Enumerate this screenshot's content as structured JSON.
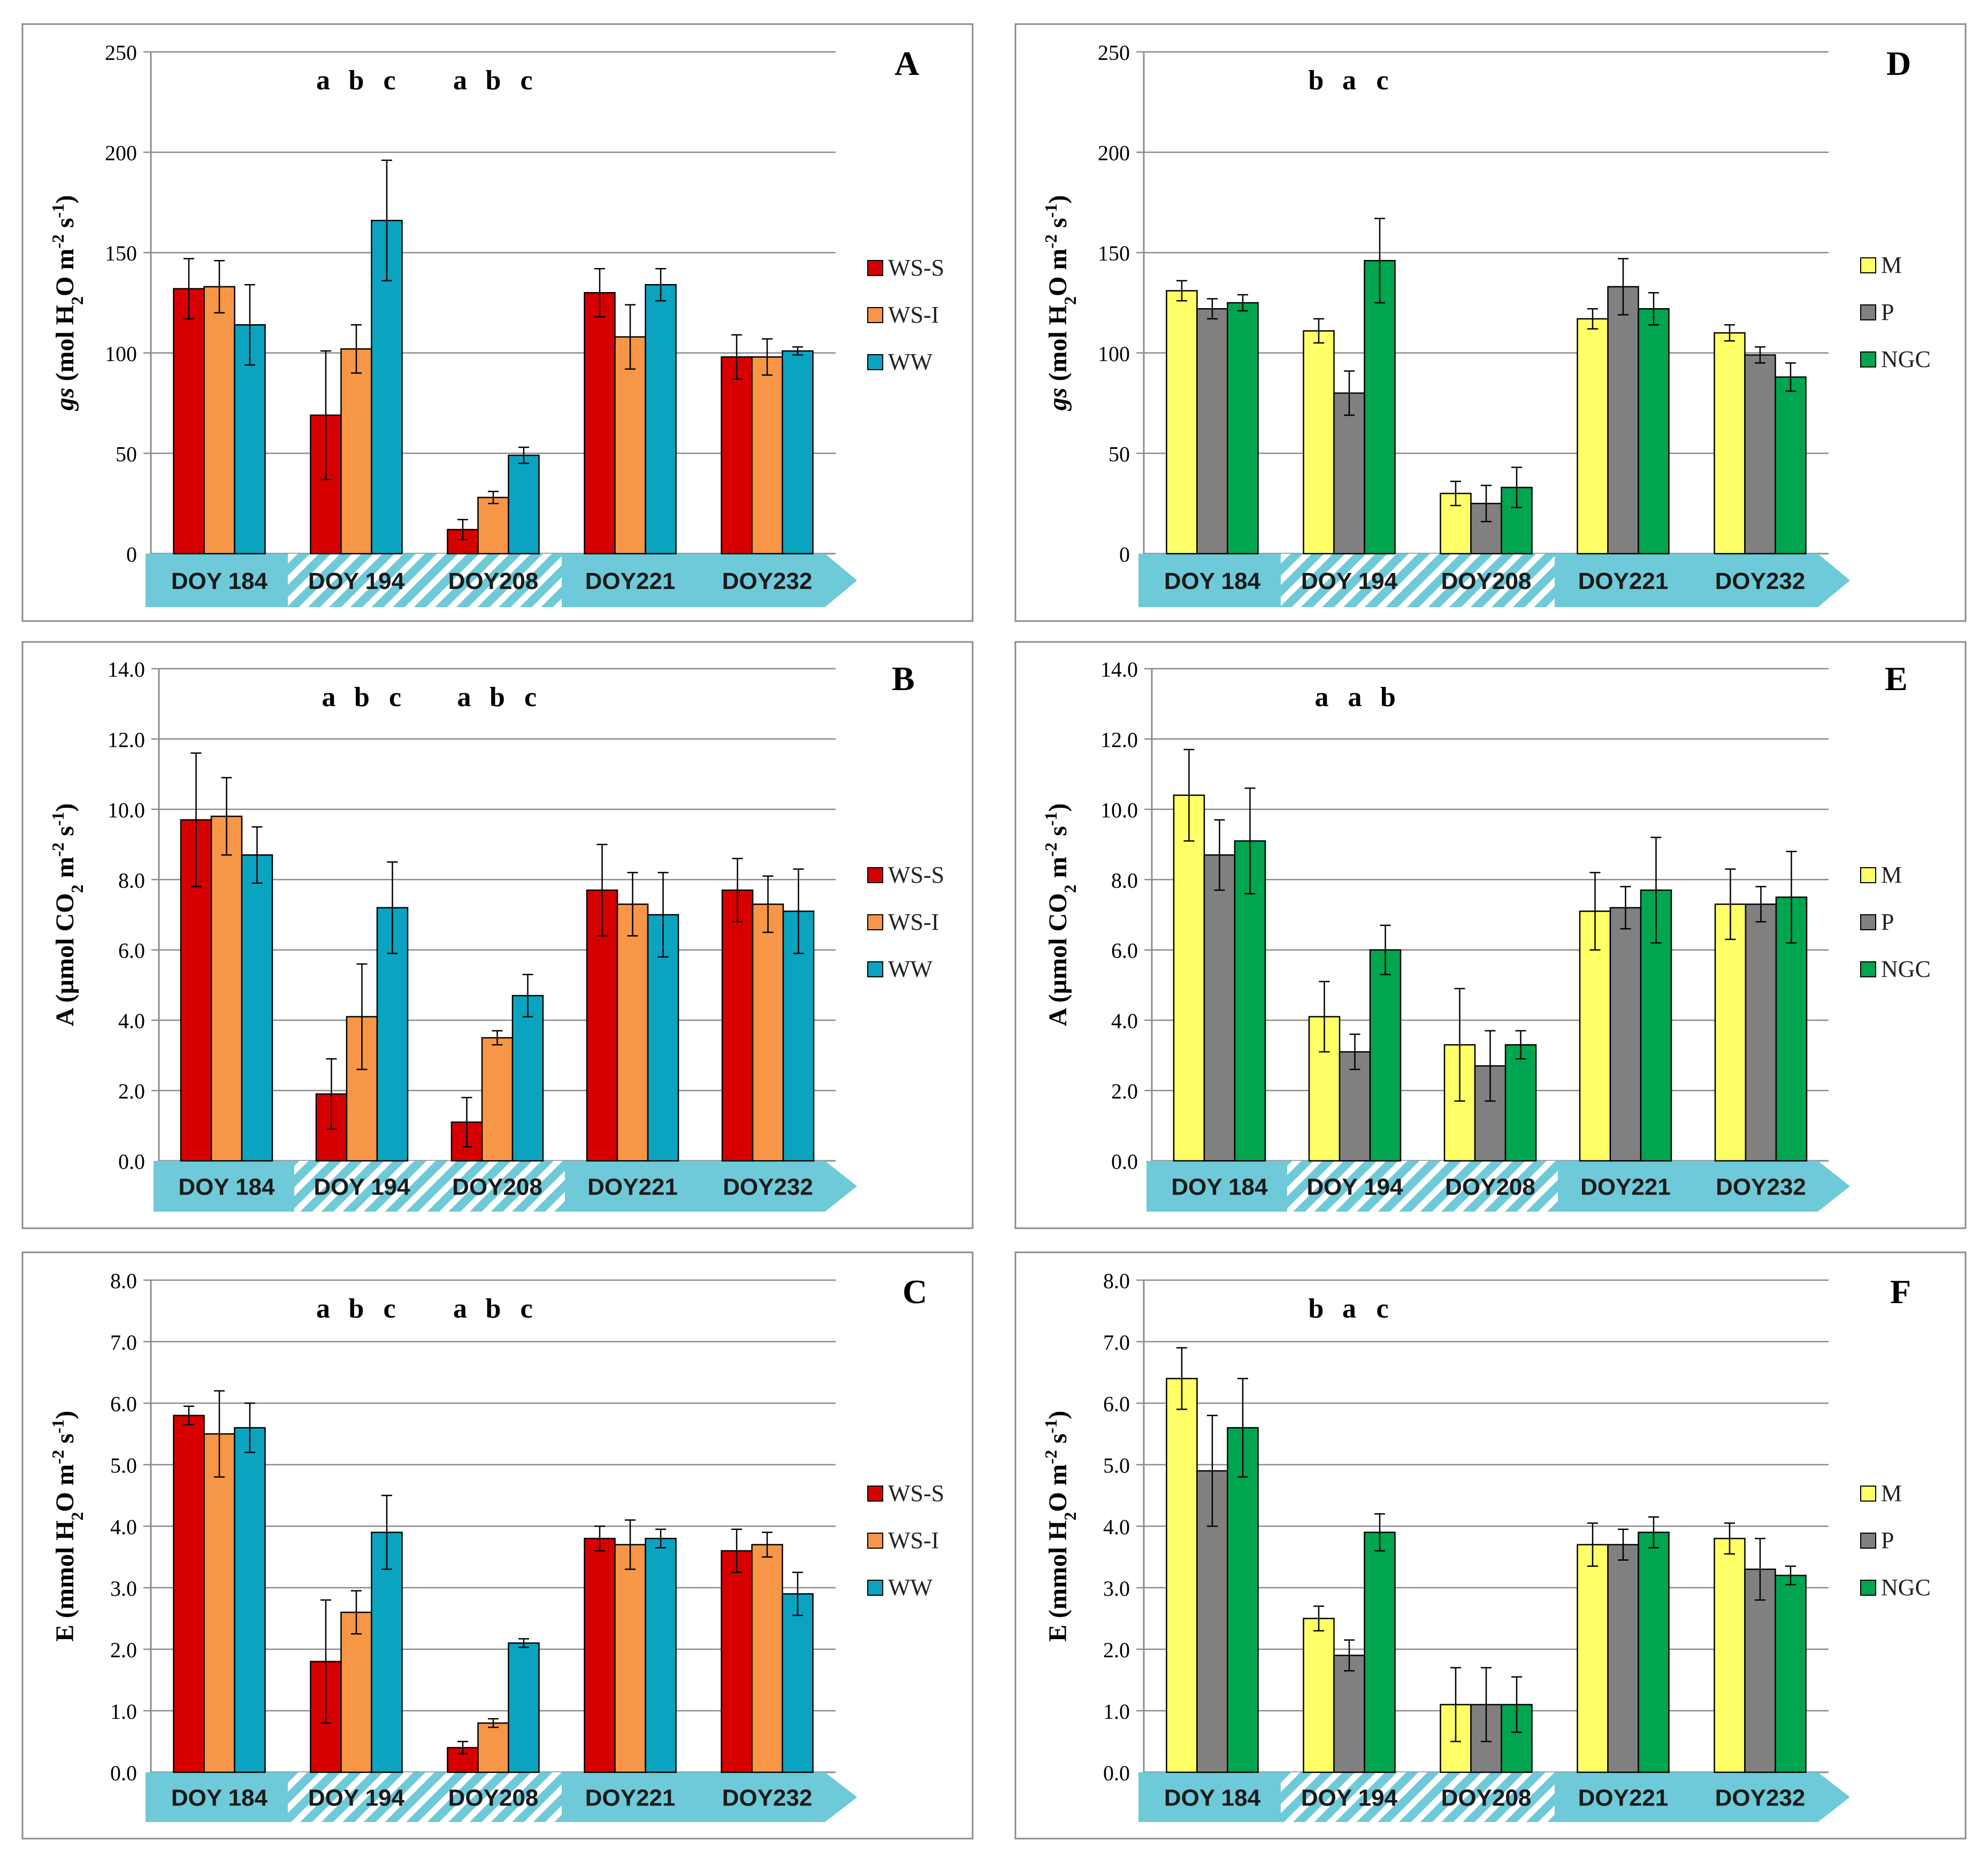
{
  "chart_data": [
    {
      "id": "A",
      "panel_letter": "A",
      "type": "bar",
      "ylabel_parts": [
        "gs",
        " (mol H",
        "2",
        "O m",
        "-2",
        " s",
        "-1",
        ")"
      ],
      "ylabel_italic_first": true,
      "ylim": [
        0,
        250
      ],
      "yticks": [
        0,
        50,
        100,
        150,
        200,
        250
      ],
      "ytick_labels": [
        "0",
        "50",
        "100",
        "150",
        "200",
        "250"
      ],
      "categories": [
        "DOY 184",
        "DOY 194",
        "DOY208",
        "DOY221",
        "DOY232"
      ],
      "series": [
        {
          "name": "WS-S",
          "color": "#d70000",
          "values": [
            132,
            69,
            12,
            130,
            98
          ],
          "errors": [
            15,
            32,
            5,
            12,
            11
          ]
        },
        {
          "name": "WS-I",
          "color": "#f79646",
          "values": [
            133,
            102,
            28,
            108,
            98
          ],
          "errors": [
            13,
            12,
            3,
            16,
            9
          ]
        },
        {
          "name": "WW",
          "color": "#0aa4c0",
          "values": [
            114,
            166,
            49,
            134,
            101
          ],
          "errors": [
            20,
            30,
            4,
            8,
            2
          ]
        }
      ],
      "significance": [
        {
          "category_index": 1,
          "letters": [
            "a",
            "b",
            "c"
          ]
        },
        {
          "category_index": 2,
          "letters": [
            "a",
            "b",
            "c"
          ]
        }
      ]
    },
    {
      "id": "D",
      "panel_letter": "D",
      "type": "bar",
      "ylabel_parts": [
        "gs",
        " (mol H",
        "2",
        "O m",
        "-2",
        " s",
        "-1",
        ")"
      ],
      "ylabel_italic_first": true,
      "ylim": [
        0,
        250
      ],
      "yticks": [
        0,
        50,
        100,
        150,
        200,
        250
      ],
      "ytick_labels": [
        "0",
        "50",
        "100",
        "150",
        "200",
        "250"
      ],
      "categories": [
        "DOY 184",
        "DOY 194",
        "DOY208",
        "DOY221",
        "DOY232"
      ],
      "series": [
        {
          "name": "M",
          "color": "#ffff66",
          "values": [
            131,
            111,
            30,
            117,
            110
          ],
          "errors": [
            5,
            6,
            6,
            5,
            4
          ]
        },
        {
          "name": "P",
          "color": "#808080",
          "values": [
            122,
            80,
            25,
            133,
            99
          ],
          "errors": [
            5,
            11,
            9,
            14,
            4
          ]
        },
        {
          "name": "NGC",
          "color": "#00a550",
          "values": [
            125,
            146,
            33,
            122,
            88
          ],
          "errors": [
            4,
            21,
            10,
            8,
            7
          ]
        }
      ],
      "significance": [
        {
          "category_index": 1,
          "letters": [
            "b",
            "a",
            "c"
          ]
        }
      ]
    },
    {
      "id": "B",
      "panel_letter": "B",
      "type": "bar",
      "ylabel_parts": [
        "A",
        " (µmol CO",
        "2",
        " m",
        "-2",
        " s",
        "-1",
        ")"
      ],
      "ylabel_italic_first": false,
      "ylim": [
        0,
        14
      ],
      "yticks": [
        0,
        2,
        4,
        6,
        8,
        10,
        12,
        14
      ],
      "ytick_labels": [
        "0.0",
        "2.0",
        "4.0",
        "6.0",
        "8.0",
        "10.0",
        "12.0",
        "14.0"
      ],
      "categories": [
        "DOY 184",
        "DOY 194",
        "DOY208",
        "DOY221",
        "DOY232"
      ],
      "series": [
        {
          "name": "WS-S",
          "color": "#d70000",
          "values": [
            9.7,
            1.9,
            1.1,
            7.7,
            7.7
          ],
          "errors": [
            1.9,
            1.0,
            0.7,
            1.3,
            0.9
          ]
        },
        {
          "name": "WS-I",
          "color": "#f79646",
          "values": [
            9.8,
            4.1,
            3.5,
            7.3,
            7.3
          ],
          "errors": [
            1.1,
            1.5,
            0.2,
            0.9,
            0.8
          ]
        },
        {
          "name": "WW",
          "color": "#0aa4c0",
          "values": [
            8.7,
            7.2,
            4.7,
            7.0,
            7.1
          ],
          "errors": [
            0.8,
            1.3,
            0.6,
            1.2,
            1.2
          ]
        }
      ],
      "significance": [
        {
          "category_index": 1,
          "letters": [
            "a",
            "b",
            "c"
          ]
        },
        {
          "category_index": 2,
          "letters": [
            "a",
            "b",
            "c"
          ]
        }
      ]
    },
    {
      "id": "E",
      "panel_letter": "E",
      "type": "bar",
      "ylabel_parts": [
        "A",
        " (µmol CO",
        "2",
        " m",
        "-2",
        " s",
        "-1",
        ")"
      ],
      "ylabel_italic_first": false,
      "ylim": [
        0,
        14
      ],
      "yticks": [
        0,
        2,
        4,
        6,
        8,
        10,
        12,
        14
      ],
      "ytick_labels": [
        "0.0",
        "2.0",
        "4.0",
        "6.0",
        "8.0",
        "10.0",
        "12.0",
        "14.0"
      ],
      "categories": [
        "DOY 184",
        "DOY 194",
        "DOY208",
        "DOY221",
        "DOY232"
      ],
      "series": [
        {
          "name": "M",
          "color": "#ffff66",
          "values": [
            10.4,
            4.1,
            3.3,
            7.1,
            7.3
          ],
          "errors": [
            1.3,
            1.0,
            1.6,
            1.1,
            1.0
          ]
        },
        {
          "name": "P",
          "color": "#808080",
          "values": [
            8.7,
            3.1,
            2.7,
            7.2,
            7.3
          ],
          "errors": [
            1.0,
            0.5,
            1.0,
            0.6,
            0.5
          ]
        },
        {
          "name": "NGC",
          "color": "#00a550",
          "values": [
            9.1,
            6.0,
            3.3,
            7.7,
            7.5
          ],
          "errors": [
            1.5,
            0.7,
            0.4,
            1.5,
            1.3
          ]
        }
      ],
      "significance": [
        {
          "category_index": 1,
          "letters": [
            "a",
            "a",
            "b"
          ]
        }
      ]
    },
    {
      "id": "C",
      "panel_letter": "C",
      "type": "bar",
      "ylabel_parts": [
        "E",
        " (mmol H",
        "2",
        "O m",
        "-2",
        " s",
        "-1",
        ")"
      ],
      "ylabel_italic_first": false,
      "ylim": [
        0,
        8
      ],
      "yticks": [
        0,
        1,
        2,
        3,
        4,
        5,
        6,
        7,
        8
      ],
      "ytick_labels": [
        "0.0",
        "1.0",
        "2.0",
        "3.0",
        "4.0",
        "5.0",
        "6.0",
        "7.0",
        "8.0"
      ],
      "categories": [
        "DOY 184",
        "DOY 194",
        "DOY208",
        "DOY221",
        "DOY232"
      ],
      "series": [
        {
          "name": "WS-S",
          "color": "#d70000",
          "values": [
            5.8,
            1.8,
            0.4,
            3.8,
            3.6
          ],
          "errors": [
            0.15,
            1.0,
            0.1,
            0.2,
            0.35
          ]
        },
        {
          "name": "WS-I",
          "color": "#f79646",
          "values": [
            5.5,
            2.6,
            0.8,
            3.7,
            3.7
          ],
          "errors": [
            0.7,
            0.35,
            0.07,
            0.4,
            0.2
          ]
        },
        {
          "name": "WW",
          "color": "#0aa4c0",
          "values": [
            5.6,
            3.9,
            2.1,
            3.8,
            2.9
          ],
          "errors": [
            0.4,
            0.6,
            0.07,
            0.15,
            0.35
          ]
        }
      ],
      "significance": [
        {
          "category_index": 1,
          "letters": [
            "a",
            "b",
            "c"
          ]
        },
        {
          "category_index": 2,
          "letters": [
            "a",
            "b",
            "c"
          ]
        }
      ]
    },
    {
      "id": "F",
      "panel_letter": "F",
      "type": "bar",
      "ylabel_parts": [
        "E",
        " (mmol H",
        "2",
        "O m",
        "-2",
        " s",
        "-1",
        ")"
      ],
      "ylabel_italic_first": false,
      "ylim": [
        0,
        8
      ],
      "yticks": [
        0,
        1,
        2,
        3,
        4,
        5,
        6,
        7,
        8
      ],
      "ytick_labels": [
        "0.0",
        "1.0",
        "2.0",
        "3.0",
        "4.0",
        "5.0",
        "6.0",
        "7.0",
        "8.0"
      ],
      "categories": [
        "DOY 184",
        "DOY 194",
        "DOY208",
        "DOY221",
        "DOY232"
      ],
      "series": [
        {
          "name": "M",
          "color": "#ffff66",
          "values": [
            6.4,
            2.5,
            1.1,
            3.7,
            3.8
          ],
          "errors": [
            0.5,
            0.2,
            0.6,
            0.35,
            0.25
          ]
        },
        {
          "name": "P",
          "color": "#808080",
          "values": [
            4.9,
            1.9,
            1.1,
            3.7,
            3.3
          ],
          "errors": [
            0.9,
            0.25,
            0.6,
            0.25,
            0.5
          ]
        },
        {
          "name": "NGC",
          "color": "#00a550",
          "values": [
            5.6,
            3.9,
            1.1,
            3.9,
            3.2
          ],
          "errors": [
            0.8,
            0.3,
            0.45,
            0.25,
            0.15
          ]
        }
      ],
      "significance": [
        {
          "category_index": 1,
          "letters": [
            "b",
            "a",
            "c"
          ]
        }
      ]
    }
  ]
}
